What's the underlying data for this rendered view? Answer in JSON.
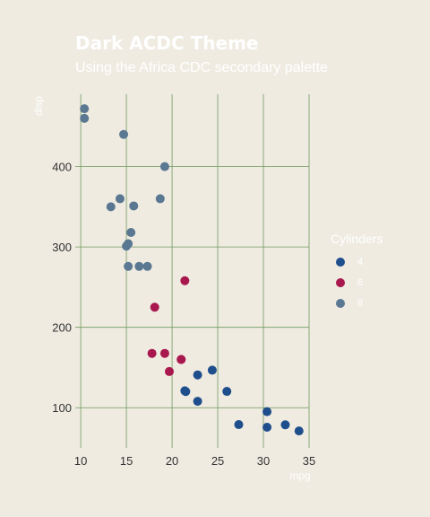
{
  "chart_data": {
    "type": "scatter",
    "title": "Dark ACDC Theme",
    "subtitle": "Using the Africa CDC secondary palette",
    "xlabel": "mpg",
    "ylabel": "disp",
    "xlim": [
      9.4,
      35.0
    ],
    "ylim": [
      50,
      490
    ],
    "x_ticks": [
      10,
      15,
      20,
      25,
      30,
      35
    ],
    "y_ticks": [
      100,
      200,
      300,
      400
    ],
    "grid": true,
    "legend": {
      "title": "Cylinders",
      "position": "right"
    },
    "series": [
      {
        "name": "4",
        "color": "#1f4e8c",
        "points": [
          [
            22.8,
            108.0
          ],
          [
            24.4,
            146.7
          ],
          [
            22.8,
            140.8
          ],
          [
            32.4,
            78.7
          ],
          [
            30.4,
            75.7
          ],
          [
            33.9,
            71.1
          ],
          [
            21.5,
            120.1
          ],
          [
            27.3,
            79.0
          ],
          [
            26.0,
            120.3
          ],
          [
            30.4,
            95.1
          ],
          [
            21.4,
            121.0
          ]
        ]
      },
      {
        "name": "6",
        "color": "#a8174e",
        "points": [
          [
            21.0,
            160.0
          ],
          [
            21.0,
            160.0
          ],
          [
            21.4,
            258.0
          ],
          [
            18.1,
            225.0
          ],
          [
            19.2,
            167.6
          ],
          [
            17.8,
            167.6
          ],
          [
            19.7,
            145.0
          ]
        ]
      },
      {
        "name": "8",
        "color": "#5a7891",
        "points": [
          [
            18.7,
            360.0
          ],
          [
            14.3,
            360.0
          ],
          [
            16.4,
            275.8
          ],
          [
            17.3,
            275.8
          ],
          [
            15.2,
            275.8
          ],
          [
            10.4,
            472.0
          ],
          [
            10.4,
            460.0
          ],
          [
            14.7,
            440.0
          ],
          [
            15.5,
            318.0
          ],
          [
            15.2,
            304.0
          ],
          [
            13.3,
            350.0
          ],
          [
            19.2,
            400.0
          ],
          [
            15.8,
            351.0
          ],
          [
            15.0,
            301.0
          ]
        ]
      }
    ]
  }
}
